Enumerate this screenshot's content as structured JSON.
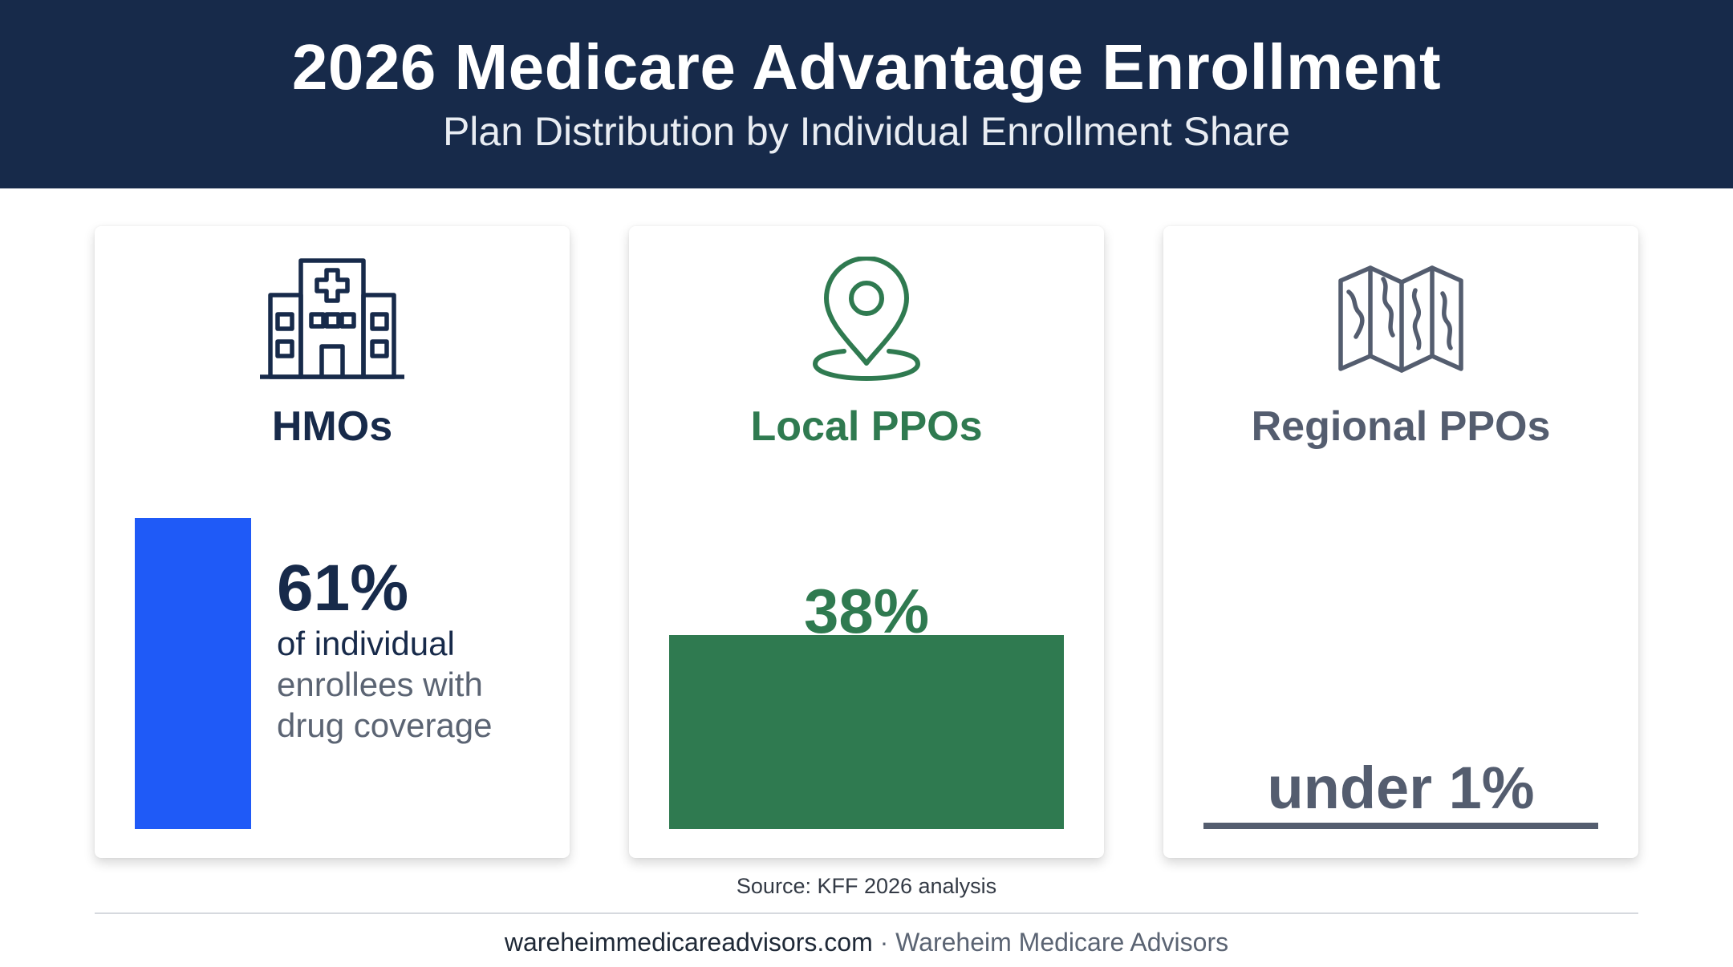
{
  "header": {
    "title": "2026 Medicare Advantage Enrollment",
    "subtitle": "Plan Distribution by Individual Enrollment Share"
  },
  "cards": [
    {
      "name": "HMOs",
      "icon": "hospital-building-icon",
      "value_label": "61%",
      "description_line1": "of individual",
      "description_line2": "enrollees with",
      "description_line3": "drug coverage",
      "color": "#1f5af7",
      "name_color": "#172a4a"
    },
    {
      "name": "Local PPOs",
      "icon": "map-pin-icon",
      "value_label": "38%",
      "color": "#2f7a50",
      "name_color": "#2f7a50"
    },
    {
      "name": "Regional PPOs",
      "icon": "folded-map-icon",
      "value_label": "under 1%",
      "color": "#545d6f",
      "name_color": "#545d6f"
    }
  ],
  "chart_data": {
    "type": "bar",
    "title": "2026 Medicare Advantage Enrollment",
    "subtitle": "Plan Distribution by Individual Enrollment Share",
    "categories": [
      "HMOs",
      "Local PPOs",
      "Regional PPOs"
    ],
    "values": [
      61,
      38,
      0.5
    ],
    "value_labels": [
      "61%",
      "38%",
      "under 1%"
    ],
    "unit": "%",
    "ylim": [
      0,
      61
    ],
    "grid": false,
    "colors": [
      "#1f5af7",
      "#2f7a50",
      "#545d6f"
    ]
  },
  "source": "Source: KFF 2026 analysis",
  "footer": {
    "site": "wareheimmedicareadvisors.com",
    "separator": " · ",
    "brand": "Wareheim Medicare Advisors"
  }
}
